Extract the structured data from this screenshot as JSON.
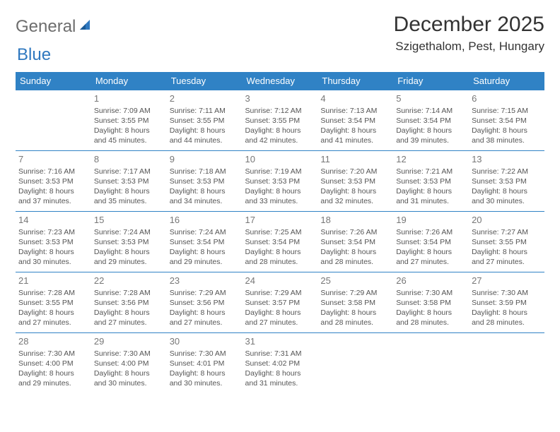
{
  "logo": {
    "general": "General",
    "blue": "Blue"
  },
  "title": "December 2025",
  "location": "Szigethalom, Pest, Hungary",
  "colors": {
    "header_bg": "#3082c5",
    "header_text": "#ffffff",
    "row_border": "#3082c5",
    "daynum": "#777777",
    "body_text": "#555555",
    "logo_general": "#6d6d6d",
    "logo_blue": "#2f78bf"
  },
  "day_headers": [
    "Sunday",
    "Monday",
    "Tuesday",
    "Wednesday",
    "Thursday",
    "Friday",
    "Saturday"
  ],
  "weeks": [
    [
      null,
      {
        "n": "1",
        "sr": "Sunrise: 7:09 AM",
        "ss": "Sunset: 3:55 PM",
        "dl": "Daylight: 8 hours and 45 minutes."
      },
      {
        "n": "2",
        "sr": "Sunrise: 7:11 AM",
        "ss": "Sunset: 3:55 PM",
        "dl": "Daylight: 8 hours and 44 minutes."
      },
      {
        "n": "3",
        "sr": "Sunrise: 7:12 AM",
        "ss": "Sunset: 3:55 PM",
        "dl": "Daylight: 8 hours and 42 minutes."
      },
      {
        "n": "4",
        "sr": "Sunrise: 7:13 AM",
        "ss": "Sunset: 3:54 PM",
        "dl": "Daylight: 8 hours and 41 minutes."
      },
      {
        "n": "5",
        "sr": "Sunrise: 7:14 AM",
        "ss": "Sunset: 3:54 PM",
        "dl": "Daylight: 8 hours and 39 minutes."
      },
      {
        "n": "6",
        "sr": "Sunrise: 7:15 AM",
        "ss": "Sunset: 3:54 PM",
        "dl": "Daylight: 8 hours and 38 minutes."
      }
    ],
    [
      {
        "n": "7",
        "sr": "Sunrise: 7:16 AM",
        "ss": "Sunset: 3:53 PM",
        "dl": "Daylight: 8 hours and 37 minutes."
      },
      {
        "n": "8",
        "sr": "Sunrise: 7:17 AM",
        "ss": "Sunset: 3:53 PM",
        "dl": "Daylight: 8 hours and 35 minutes."
      },
      {
        "n": "9",
        "sr": "Sunrise: 7:18 AM",
        "ss": "Sunset: 3:53 PM",
        "dl": "Daylight: 8 hours and 34 minutes."
      },
      {
        "n": "10",
        "sr": "Sunrise: 7:19 AM",
        "ss": "Sunset: 3:53 PM",
        "dl": "Daylight: 8 hours and 33 minutes."
      },
      {
        "n": "11",
        "sr": "Sunrise: 7:20 AM",
        "ss": "Sunset: 3:53 PM",
        "dl": "Daylight: 8 hours and 32 minutes."
      },
      {
        "n": "12",
        "sr": "Sunrise: 7:21 AM",
        "ss": "Sunset: 3:53 PM",
        "dl": "Daylight: 8 hours and 31 minutes."
      },
      {
        "n": "13",
        "sr": "Sunrise: 7:22 AM",
        "ss": "Sunset: 3:53 PM",
        "dl": "Daylight: 8 hours and 30 minutes."
      }
    ],
    [
      {
        "n": "14",
        "sr": "Sunrise: 7:23 AM",
        "ss": "Sunset: 3:53 PM",
        "dl": "Daylight: 8 hours and 30 minutes."
      },
      {
        "n": "15",
        "sr": "Sunrise: 7:24 AM",
        "ss": "Sunset: 3:53 PM",
        "dl": "Daylight: 8 hours and 29 minutes."
      },
      {
        "n": "16",
        "sr": "Sunrise: 7:24 AM",
        "ss": "Sunset: 3:54 PM",
        "dl": "Daylight: 8 hours and 29 minutes."
      },
      {
        "n": "17",
        "sr": "Sunrise: 7:25 AM",
        "ss": "Sunset: 3:54 PM",
        "dl": "Daylight: 8 hours and 28 minutes."
      },
      {
        "n": "18",
        "sr": "Sunrise: 7:26 AM",
        "ss": "Sunset: 3:54 PM",
        "dl": "Daylight: 8 hours and 28 minutes."
      },
      {
        "n": "19",
        "sr": "Sunrise: 7:26 AM",
        "ss": "Sunset: 3:54 PM",
        "dl": "Daylight: 8 hours and 27 minutes."
      },
      {
        "n": "20",
        "sr": "Sunrise: 7:27 AM",
        "ss": "Sunset: 3:55 PM",
        "dl": "Daylight: 8 hours and 27 minutes."
      }
    ],
    [
      {
        "n": "21",
        "sr": "Sunrise: 7:28 AM",
        "ss": "Sunset: 3:55 PM",
        "dl": "Daylight: 8 hours and 27 minutes."
      },
      {
        "n": "22",
        "sr": "Sunrise: 7:28 AM",
        "ss": "Sunset: 3:56 PM",
        "dl": "Daylight: 8 hours and 27 minutes."
      },
      {
        "n": "23",
        "sr": "Sunrise: 7:29 AM",
        "ss": "Sunset: 3:56 PM",
        "dl": "Daylight: 8 hours and 27 minutes."
      },
      {
        "n": "24",
        "sr": "Sunrise: 7:29 AM",
        "ss": "Sunset: 3:57 PM",
        "dl": "Daylight: 8 hours and 27 minutes."
      },
      {
        "n": "25",
        "sr": "Sunrise: 7:29 AM",
        "ss": "Sunset: 3:58 PM",
        "dl": "Daylight: 8 hours and 28 minutes."
      },
      {
        "n": "26",
        "sr": "Sunrise: 7:30 AM",
        "ss": "Sunset: 3:58 PM",
        "dl": "Daylight: 8 hours and 28 minutes."
      },
      {
        "n": "27",
        "sr": "Sunrise: 7:30 AM",
        "ss": "Sunset: 3:59 PM",
        "dl": "Daylight: 8 hours and 28 minutes."
      }
    ],
    [
      {
        "n": "28",
        "sr": "Sunrise: 7:30 AM",
        "ss": "Sunset: 4:00 PM",
        "dl": "Daylight: 8 hours and 29 minutes."
      },
      {
        "n": "29",
        "sr": "Sunrise: 7:30 AM",
        "ss": "Sunset: 4:00 PM",
        "dl": "Daylight: 8 hours and 30 minutes."
      },
      {
        "n": "30",
        "sr": "Sunrise: 7:30 AM",
        "ss": "Sunset: 4:01 PM",
        "dl": "Daylight: 8 hours and 30 minutes."
      },
      {
        "n": "31",
        "sr": "Sunrise: 7:31 AM",
        "ss": "Sunset: 4:02 PM",
        "dl": "Daylight: 8 hours and 31 minutes."
      },
      null,
      null,
      null
    ]
  ]
}
